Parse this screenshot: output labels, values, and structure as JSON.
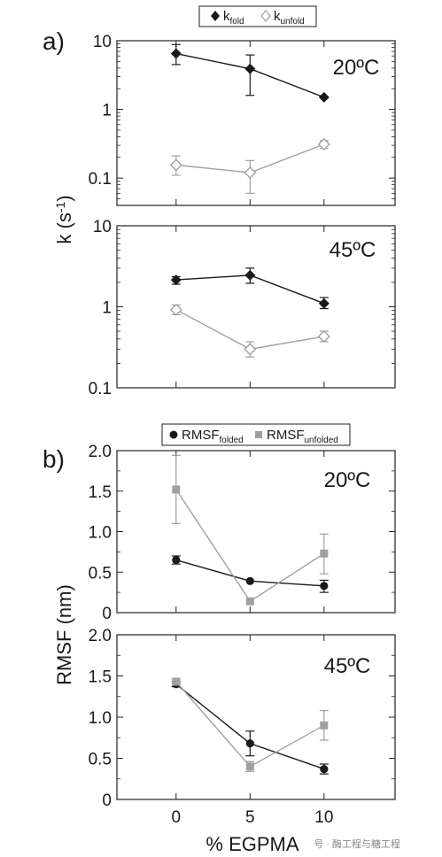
{
  "colors": {
    "black": "#1a1a1a",
    "gray": "#a0a0a0",
    "frame": "#222222"
  },
  "chart_data": [
    {
      "type": "scatter",
      "panel": "a)",
      "temperature": "20ºC",
      "y_scale": "log",
      "ylim": [
        0.04,
        10
      ],
      "yticks": [
        "10",
        "1",
        "0.1"
      ],
      "x": [
        0,
        5,
        10
      ],
      "ylabel": "k (s-1)",
      "legend": [
        "k_fold",
        "k_unfold"
      ],
      "series": [
        {
          "name": "k_fold",
          "marker": "filled-diamond",
          "color": "#1a1a1a",
          "values": [
            6.5,
            3.9,
            1.5
          ],
          "err_low": [
            4.5,
            1.6,
            1.5
          ],
          "err_high": [
            8.8,
            6.2,
            1.5
          ]
        },
        {
          "name": "k_unfold",
          "marker": "open-diamond",
          "color": "#a0a0a0",
          "values": [
            0.155,
            0.12,
            0.31
          ],
          "err_low": [
            0.11,
            0.06,
            0.27
          ],
          "err_high": [
            0.21,
            0.18,
            0.35
          ]
        }
      ]
    },
    {
      "type": "scatter",
      "panel": "",
      "temperature": "45ºC",
      "y_scale": "log",
      "ylim": [
        0.1,
        10
      ],
      "yticks": [
        "10",
        "1",
        "0.1"
      ],
      "x": [
        0,
        5,
        10
      ],
      "series": [
        {
          "name": "k_fold",
          "marker": "filled-diamond",
          "color": "#1a1a1a",
          "values": [
            2.15,
            2.45,
            1.1
          ],
          "err_low": [
            1.9,
            1.95,
            0.95
          ],
          "err_high": [
            2.35,
            3.0,
            1.3
          ]
        },
        {
          "name": "k_unfold",
          "marker": "open-diamond",
          "color": "#a0a0a0",
          "values": [
            0.92,
            0.3,
            0.43
          ],
          "err_low": [
            0.8,
            0.24,
            0.37
          ],
          "err_high": [
            1.05,
            0.37,
            0.5
          ]
        }
      ]
    },
    {
      "type": "scatter",
      "panel": "b)",
      "temperature": "20ºC",
      "y_scale": "linear",
      "ylim": [
        0,
        2.0
      ],
      "yticks": [
        "2.0",
        "1.5",
        "1.0",
        "0.5",
        "0"
      ],
      "x": [
        0,
        5,
        10
      ],
      "ylabel": "RMSF (nm)",
      "legend": [
        "RMSF_folded",
        "RMSF_unfolded"
      ],
      "series": [
        {
          "name": "RMSF_folded",
          "marker": "filled-circle",
          "color": "#1a1a1a",
          "values": [
            0.65,
            0.39,
            0.33
          ],
          "err_low": [
            0.6,
            0.39,
            0.25
          ],
          "err_high": [
            0.7,
            0.39,
            0.4
          ]
        },
        {
          "name": "RMSF_unfolded",
          "marker": "filled-square",
          "color": "#a0a0a0",
          "values": [
            1.52,
            0.14,
            0.73
          ],
          "err_low": [
            1.1,
            0.14,
            0.48
          ],
          "err_high": [
            1.94,
            0.14,
            0.97
          ]
        }
      ]
    },
    {
      "type": "scatter",
      "panel": "",
      "temperature": "45ºC",
      "y_scale": "linear",
      "ylim": [
        0,
        2.0
      ],
      "yticks": [
        "2.0",
        "1.5",
        "1.0",
        "0.5",
        "0"
      ],
      "x": [
        0,
        5,
        10
      ],
      "xticks": [
        "0",
        "5",
        "10"
      ],
      "xlim": [
        -4,
        14.8
      ],
      "xlabel": "% EGPMA",
      "series": [
        {
          "name": "RMSF_folded",
          "marker": "filled-circle",
          "color": "#1a1a1a",
          "values": [
            1.4,
            0.68,
            0.37
          ],
          "err_low": [
            1.37,
            0.53,
            0.31
          ],
          "err_high": [
            1.43,
            0.83,
            0.43
          ]
        },
        {
          "name": "RMSF_unfolded",
          "marker": "filled-square",
          "color": "#a0a0a0",
          "values": [
            1.43,
            0.4,
            0.9
          ],
          "err_low": [
            1.4,
            0.34,
            0.72
          ],
          "err_high": [
            1.46,
            0.46,
            1.08
          ]
        }
      ]
    }
  ],
  "labels": {
    "ylabel_a": "k (s",
    "ylabel_a_sup": "-1",
    "ylabel_a_end": ")",
    "ylabel_b": "RMSF (nm)",
    "xlabel": "% EGPMA",
    "legend_a1_main": "k",
    "legend_a1_sub": "fold",
    "legend_a2_main": "k",
    "legend_a2_sub": "unfold",
    "legend_b1_main": "RMSF",
    "legend_b1_sub": "folded",
    "legend_b2_main": "RMSF",
    "legend_b2_sub": "unfolded"
  },
  "watermark": "号 · 酶工程与糖工程"
}
